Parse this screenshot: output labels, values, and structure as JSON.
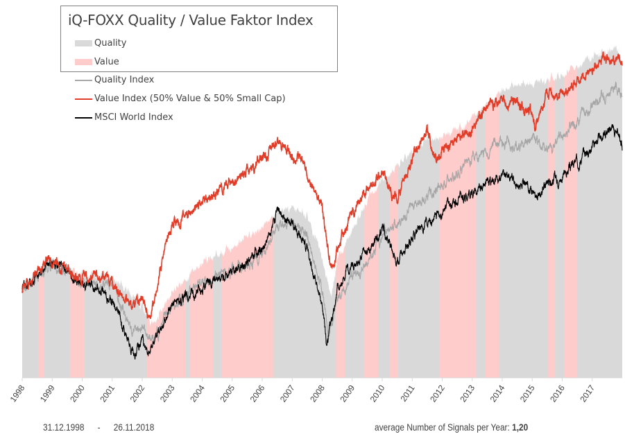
{
  "chart_data": {
    "type": "line",
    "title": "iQ-FOXX Quality / Value Faktor Index",
    "xlabel": "",
    "ylabel": "",
    "xlim": [
      1998,
      2018
    ],
    "ylim": [
      0,
      490
    ],
    "x_ticks": [
      "1998",
      "1999",
      "2000",
      "2001",
      "2002",
      "2003",
      "2004",
      "2005",
      "2006",
      "2007",
      "2008",
      "2009",
      "2010",
      "2011",
      "2012",
      "2013",
      "2014",
      "2015",
      "2016",
      "2017"
    ],
    "grid": false,
    "legend": {
      "placement": "top-left",
      "area_entries": [
        {
          "label": "Quality",
          "color": "#d9d9d9"
        },
        {
          "label": "Value",
          "color": "#ffcccc"
        }
      ],
      "line_entries": [
        {
          "label": "Quality Index",
          "color": "#a6a6a6"
        },
        {
          "label": "Value Index (50% Value & 50% Small Cap)",
          "color": "#e03c28"
        },
        {
          "label": "MSCI World Index",
          "color": "#000000"
        }
      ]
    },
    "regime_area": {
      "points": [
        [
          1998,
          125
        ],
        [
          1999,
          170
        ],
        [
          2000,
          150
        ],
        [
          2001,
          145
        ],
        [
          2002,
          105
        ],
        [
          2002.3,
          75
        ],
        [
          2003,
          125
        ],
        [
          2004,
          165
        ],
        [
          2005,
          190
        ],
        [
          2006,
          215
        ],
        [
          2006.5,
          240
        ],
        [
          2007,
          245
        ],
        [
          2007.5,
          235
        ],
        [
          2008,
          175
        ],
        [
          2008.3,
          115
        ],
        [
          2008.5,
          165
        ],
        [
          2009,
          215
        ],
        [
          2009.5,
          255
        ],
        [
          2010,
          285
        ],
        [
          2011,
          325
        ],
        [
          2011.5,
          345
        ],
        [
          2012,
          345
        ],
        [
          2013,
          375
        ],
        [
          2014,
          415
        ],
        [
          2014.5,
          425
        ],
        [
          2015,
          425
        ],
        [
          2016,
          435
        ],
        [
          2017,
          465
        ],
        [
          2017.8,
          475
        ],
        [
          2018,
          455
        ]
      ],
      "value_periods": [
        [
          1998.53,
          1998.74
        ],
        [
          1999.59,
          2000.08
        ],
        [
          2002.16,
          2003.45
        ],
        [
          2003.59,
          2004.37
        ],
        [
          2004.65,
          2006.38
        ],
        [
          2008.46,
          2008.76
        ],
        [
          2009.39,
          2009.87
        ],
        [
          2010.26,
          2010.52
        ],
        [
          2011.9,
          2013.13
        ],
        [
          2013.43,
          2013.89
        ],
        [
          2015.53,
          2015.76
        ],
        [
          2016.06,
          2016.5
        ]
      ]
    },
    "series": [
      {
        "name": "Quality Index",
        "color": "#a6a6a6",
        "points": [
          [
            1998,
            125
          ],
          [
            1999,
            165
          ],
          [
            2000,
            135
          ],
          [
            2001,
            135
          ],
          [
            2001.7,
            65
          ],
          [
            2002,
            75
          ],
          [
            2002.3,
            50
          ],
          [
            2003,
            105
          ],
          [
            2004,
            135
          ],
          [
            2005,
            155
          ],
          [
            2006,
            175
          ],
          [
            2006.5,
            215
          ],
          [
            2007,
            225
          ],
          [
            2007.5,
            205
          ],
          [
            2008,
            125
          ],
          [
            2008.2,
            55
          ],
          [
            2008.5,
            115
          ],
          [
            2009,
            145
          ],
          [
            2009.5,
            165
          ],
          [
            2010,
            205
          ],
          [
            2011,
            245
          ],
          [
            2011.5,
            265
          ],
          [
            2012,
            275
          ],
          [
            2013,
            315
          ],
          [
            2014,
            340
          ],
          [
            2014.5,
            335
          ],
          [
            2015,
            345
          ],
          [
            2015.6,
            325
          ],
          [
            2016,
            350
          ],
          [
            2017,
            395
          ],
          [
            2017.8,
            420
          ],
          [
            2018,
            400
          ]
        ]
      },
      {
        "name": "MSCI World Index",
        "color": "#000000",
        "points": [
          [
            1998,
            125
          ],
          [
            1999,
            170
          ],
          [
            2000,
            135
          ],
          [
            2000.5,
            130
          ],
          [
            2001,
            110
          ],
          [
            2001.7,
            35
          ],
          [
            2002,
            55
          ],
          [
            2002.2,
            30
          ],
          [
            2003,
            105
          ],
          [
            2004,
            130
          ],
          [
            2005,
            150
          ],
          [
            2006,
            185
          ],
          [
            2006.5,
            235
          ],
          [
            2007,
            225
          ],
          [
            2007.5,
            185
          ],
          [
            2008,
            105
          ],
          [
            2008.15,
            45
          ],
          [
            2008.5,
            125
          ],
          [
            2009,
            165
          ],
          [
            2009.5,
            180
          ],
          [
            2010,
            215
          ],
          [
            2010.5,
            165
          ],
          [
            2011,
            205
          ],
          [
            2012,
            240
          ],
          [
            2013,
            270
          ],
          [
            2014,
            290
          ],
          [
            2015,
            275
          ],
          [
            2015.1,
            255
          ],
          [
            2015.5,
            285
          ],
          [
            2016,
            290
          ],
          [
            2017,
            335
          ],
          [
            2017.6,
            360
          ],
          [
            2018,
            335
          ]
        ]
      },
      {
        "name": "Value Index (50% Value & 50% Small Cap)",
        "color": "#e03c28",
        "points": [
          [
            1998,
            125
          ],
          [
            1998.9,
            170
          ],
          [
            1999.2,
            160
          ],
          [
            1999.6,
            150
          ],
          [
            2000,
            145
          ],
          [
            2000.5,
            150
          ],
          [
            2001,
            135
          ],
          [
            2001.7,
            105
          ],
          [
            2002,
            115
          ],
          [
            2002.3,
            90
          ],
          [
            2002.7,
            175
          ],
          [
            2003,
            215
          ],
          [
            2004,
            255
          ],
          [
            2005,
            280
          ],
          [
            2006,
            315
          ],
          [
            2006.5,
            340
          ],
          [
            2007,
            320
          ],
          [
            2007.3,
            315
          ],
          [
            2008,
            245
          ],
          [
            2008.3,
            155
          ],
          [
            2008.5,
            185
          ],
          [
            2009,
            235
          ],
          [
            2009.5,
            275
          ],
          [
            2010,
            295
          ],
          [
            2010.5,
            255
          ],
          [
            2011,
            320
          ],
          [
            2011.5,
            360
          ],
          [
            2011.8,
            305
          ],
          [
            2012,
            330
          ],
          [
            2013,
            360
          ],
          [
            2013.5,
            395
          ],
          [
            2014,
            400
          ],
          [
            2014.5,
            395
          ],
          [
            2015,
            380
          ],
          [
            2015.1,
            360
          ],
          [
            2015.5,
            410
          ],
          [
            2016,
            405
          ],
          [
            2016.3,
            420
          ],
          [
            2017,
            445
          ],
          [
            2017.5,
            465
          ],
          [
            2017.8,
            460
          ],
          [
            2018,
            445
          ]
        ]
      }
    ],
    "annotations": {
      "date_from": "31.12.1998",
      "date_sep": "-",
      "date_to": "26.11.2018",
      "signals_label": "average Number of Signals per Year:",
      "signals_value": "1,20"
    }
  }
}
